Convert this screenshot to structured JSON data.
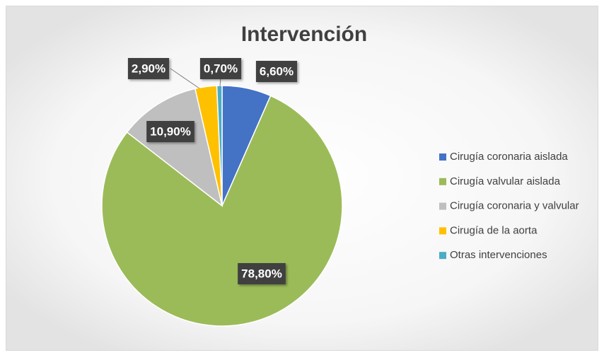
{
  "chart_data": {
    "type": "pie",
    "title": "Intervención",
    "categories": [
      "Cirugía coronaria aislada",
      "Cirugía valvular aislada",
      "Cirugía coronaria y valvular",
      "Cirugía de la aorta",
      "Otras intervenciones"
    ],
    "values": [
      6.6,
      78.8,
      10.9,
      2.9,
      0.7
    ],
    "value_labels": [
      "6,60%",
      "78,80%",
      "10,90%",
      "2,90%",
      "0,70%"
    ],
    "colors": [
      "#4472c4",
      "#9bbb59",
      "#bfbfbf",
      "#ffc000",
      "#4bacc6"
    ],
    "legend": "right"
  }
}
